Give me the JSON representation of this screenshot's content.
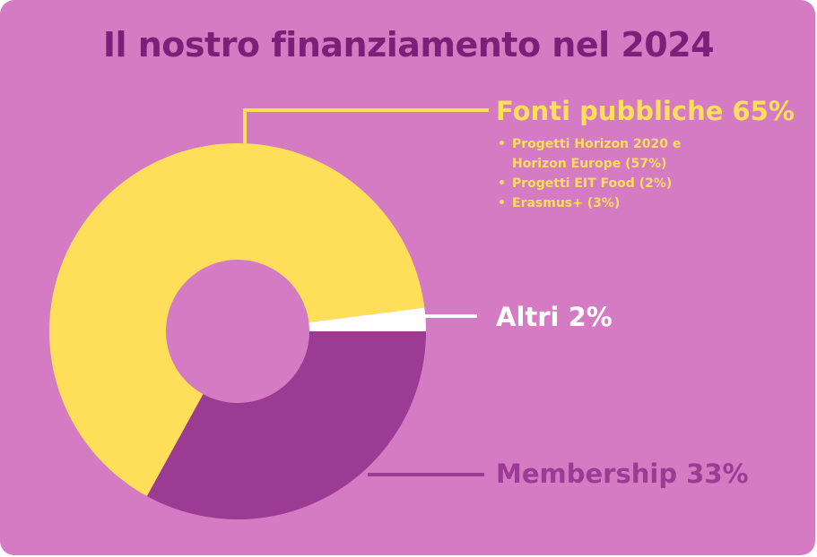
{
  "title": "Il nostro finanziamento nel 2024",
  "colors": {
    "background": "#d57bc3",
    "title": "#7b1f78",
    "public": "#ffde5a",
    "other": "#ffffff",
    "membership": "#9b3b93"
  },
  "chart_data": {
    "type": "pie",
    "donut": true,
    "title": "Il nostro finanziamento nel 2024",
    "slices": [
      {
        "name": "Membership",
        "label": "Membership 33%",
        "value": 33,
        "color": "#9b3b93"
      },
      {
        "name": "Fonti pubbliche",
        "label": "Fonti pubbliche 65%",
        "value": 65,
        "color": "#ffde5a",
        "details": [
          "Progetti Horizon 2020 e Horizon Europe (57%)",
          "Progetti EIT Food (2%)",
          "Erasmus+ (3%)"
        ]
      },
      {
        "name": "Altri",
        "label": "Altri 2%",
        "value": 2,
        "color": "#ffffff"
      }
    ]
  }
}
